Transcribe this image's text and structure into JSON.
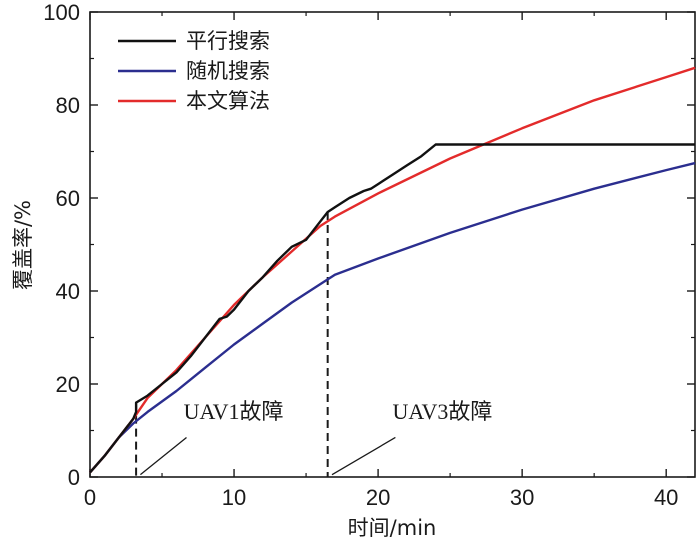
{
  "chart_data": {
    "type": "line",
    "title": "",
    "xlabel": "时间/min",
    "ylabel": "覆盖率/%",
    "xlim": [
      0,
      42
    ],
    "ylim": [
      0,
      100
    ],
    "xticks": [
      0,
      10,
      20,
      30,
      40
    ],
    "yticks": [
      0,
      20,
      40,
      60,
      80,
      100
    ],
    "grid": false,
    "legend_position": "top-left",
    "series": [
      {
        "name": "平行搜索",
        "color": "#111111",
        "points": [
          [
            0,
            1
          ],
          [
            1,
            4.5
          ],
          [
            2,
            8.5
          ],
          [
            3,
            12.5
          ],
          [
            3.2,
            14
          ],
          [
            3.2,
            16
          ],
          [
            4,
            17.5
          ],
          [
            5,
            20
          ],
          [
            6,
            22.5
          ],
          [
            7,
            26
          ],
          [
            8,
            30
          ],
          [
            9,
            34
          ],
          [
            9.5,
            34.5
          ],
          [
            10,
            36
          ],
          [
            11,
            40
          ],
          [
            12,
            43
          ],
          [
            13,
            46.5
          ],
          [
            14,
            49.5
          ],
          [
            15,
            51
          ],
          [
            16,
            55
          ],
          [
            16.5,
            57
          ],
          [
            17,
            58
          ],
          [
            18,
            60
          ],
          [
            19,
            61.5
          ],
          [
            19.5,
            62
          ],
          [
            20,
            63
          ],
          [
            21,
            65
          ],
          [
            22,
            67
          ],
          [
            23,
            69
          ],
          [
            24,
            71.5
          ],
          [
            42,
            71.5
          ]
        ]
      },
      {
        "name": "随机搜索",
        "color": "#2b2e8f",
        "points": [
          [
            0,
            1
          ],
          [
            1,
            4.5
          ],
          [
            2,
            8.5
          ],
          [
            3,
            11.5
          ],
          [
            4,
            14
          ],
          [
            6,
            18.5
          ],
          [
            8,
            23.5
          ],
          [
            10,
            28.5
          ],
          [
            12,
            33
          ],
          [
            14,
            37.5
          ],
          [
            16,
            41.5
          ],
          [
            17,
            43.5
          ],
          [
            20,
            47
          ],
          [
            25,
            52.5
          ],
          [
            30,
            57.5
          ],
          [
            35,
            62
          ],
          [
            40,
            66
          ],
          [
            42,
            67.5
          ]
        ]
      },
      {
        "name": "本文算法",
        "color": "#e32b2b",
        "points": [
          [
            0,
            1
          ],
          [
            1,
            4.5
          ],
          [
            2,
            8.5
          ],
          [
            3,
            12.5
          ],
          [
            4,
            17
          ],
          [
            6,
            23
          ],
          [
            8,
            30
          ],
          [
            10,
            37
          ],
          [
            12,
            43
          ],
          [
            14,
            48.5
          ],
          [
            16,
            54
          ],
          [
            17,
            56
          ],
          [
            20,
            61
          ],
          [
            25,
            68.5
          ],
          [
            30,
            75
          ],
          [
            35,
            81
          ],
          [
            40,
            86
          ],
          [
            42,
            88
          ]
        ]
      }
    ],
    "annotations": [
      {
        "text": "UAV1故障",
        "x": 3.2,
        "y_top": 16,
        "label_x": 6.5,
        "label_y": 12.5,
        "leader": [
          [
            3.5,
            0.5
          ],
          [
            6.7,
            8.5
          ]
        ]
      },
      {
        "text": "UAV3故障",
        "x": 16.5,
        "y_top": 57,
        "label_x": 21,
        "label_y": 12.5,
        "leader": [
          [
            16.8,
            0.5
          ],
          [
            21.2,
            8.5
          ]
        ]
      }
    ]
  }
}
